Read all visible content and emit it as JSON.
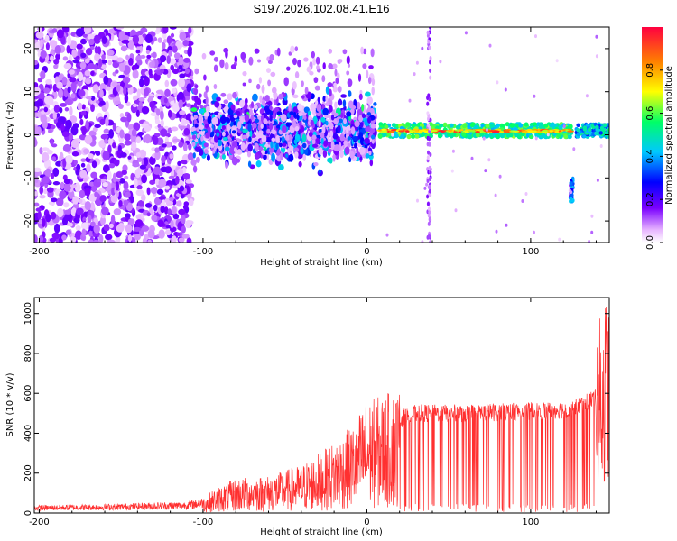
{
  "title": "S197.2026.102.08.41.E16",
  "chart_data": [
    {
      "type": "heatmap",
      "xlabel": "Height of straight line (km)",
      "ylabel": "Frequency (Hz)",
      "xlim": [
        -203,
        148
      ],
      "ylim": [
        -25,
        25
      ],
      "xticks": [
        "-200",
        "-100",
        "0",
        "100"
      ],
      "yticks": [
        "-20",
        "-10",
        "0",
        "10",
        "20"
      ],
      "colorbar": {
        "label": "Normalized spectral amplitude",
        "range": [
          0.0,
          1.0
        ],
        "ticks": [
          "0.0",
          "0.2",
          "0.4",
          "0.6",
          "0.8"
        ],
        "colors": [
          "#ffffff",
          "#e6b3ff",
          "#7a00ff",
          "#0000ff",
          "#00c8ff",
          "#00ff66",
          "#ffff00",
          "#ff8000",
          "#ff0040"
        ]
      },
      "features": [
        {
          "x_range": [
            -203,
            -107
          ],
          "freq_range": [
            -25,
            25
          ],
          "amplitude": 0.15,
          "note": "broad scatter"
        },
        {
          "x_range": [
            -107,
            5
          ],
          "freq_range": [
            -8,
            8
          ],
          "amplitude": 0.3
        },
        {
          "x_range": [
            8,
            125
          ],
          "freq_center": 1,
          "amplitude": 0.7,
          "note": "narrow band"
        },
        {
          "x_range": [
            128,
            148
          ],
          "freq_center": 1,
          "amplitude": 0.45
        },
        {
          "x": 124,
          "freq_center": -13,
          "amplitude": 0.35
        }
      ]
    },
    {
      "type": "line",
      "xlabel": "Height of straight line (km)",
      "ylabel": "SNR (10 * v/v)",
      "xlim": [
        -203,
        148
      ],
      "ylim": [
        0,
        1080
      ],
      "xticks": [
        "-200",
        "-100",
        "0",
        "100"
      ],
      "yticks": [
        "0",
        "200",
        "400",
        "600",
        "800",
        "1000"
      ],
      "color": "#ff3030",
      "envelope": [
        {
          "x": -203,
          "y": 30
        },
        {
          "x": -160,
          "y": 35
        },
        {
          "x": -110,
          "y": 45
        },
        {
          "x": -100,
          "y": 60
        },
        {
          "x": -90,
          "y": 100
        },
        {
          "x": -80,
          "y": 130
        },
        {
          "x": -60,
          "y": 140
        },
        {
          "x": -40,
          "y": 180
        },
        {
          "x": -25,
          "y": 240
        },
        {
          "x": -10,
          "y": 320
        },
        {
          "x": 0,
          "y": 420
        },
        {
          "x": 10,
          "y": 440
        },
        {
          "x": 20,
          "y": 470
        },
        {
          "x": 30,
          "y": 500
        },
        {
          "x": 60,
          "y": 500
        },
        {
          "x": 100,
          "y": 510
        },
        {
          "x": 125,
          "y": 520
        },
        {
          "x": 140,
          "y": 580
        },
        {
          "x": 148,
          "y": 720
        }
      ]
    }
  ]
}
